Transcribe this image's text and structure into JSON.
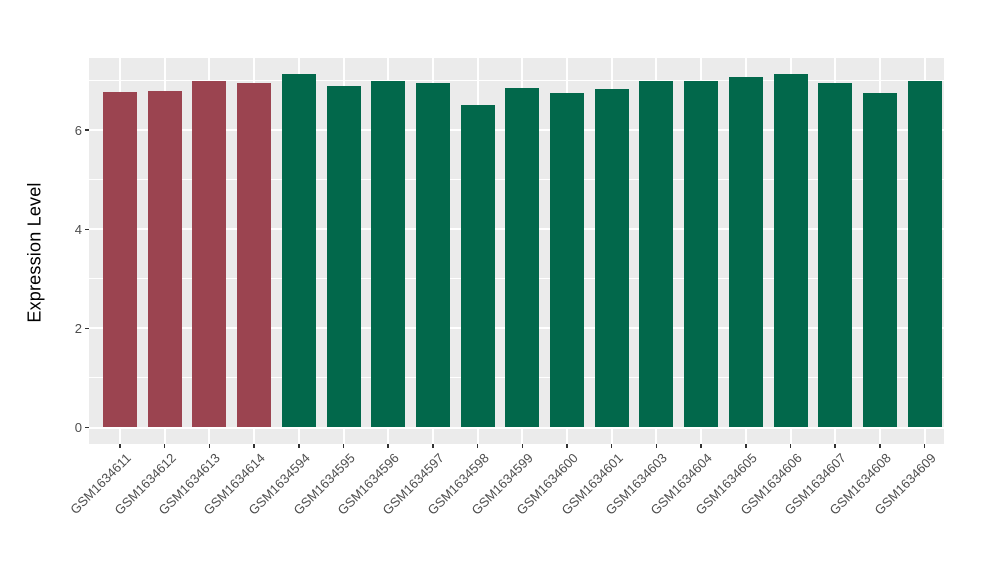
{
  "chart_data": {
    "type": "bar",
    "title": "",
    "xlabel": "",
    "ylabel": "Expression Level",
    "categories": [
      "GSM1634611",
      "GSM1634612",
      "GSM1634613",
      "GSM1634614",
      "GSM1634594",
      "GSM1634595",
      "GSM1634596",
      "GSM1634597",
      "GSM1634598",
      "GSM1634599",
      "GSM1634600",
      "GSM1634601",
      "GSM1634603",
      "GSM1634604",
      "GSM1634605",
      "GSM1634606",
      "GSM1634607",
      "GSM1634608",
      "GSM1634609"
    ],
    "values": [
      6.78,
      6.8,
      7.0,
      6.96,
      7.13,
      6.9,
      6.99,
      6.96,
      6.51,
      6.86,
      6.76,
      6.83,
      6.99,
      6.99,
      7.08,
      7.13,
      6.96,
      6.76,
      6.99
    ],
    "bar_groups": [
      "red",
      "red",
      "red",
      "red",
      "green",
      "green",
      "green",
      "green",
      "green",
      "green",
      "green",
      "green",
      "green",
      "green",
      "green",
      "green",
      "green",
      "green",
      "green"
    ],
    "group_colors": {
      "red": "#9B4450",
      "green": "#02684B"
    },
    "yticks": [
      0,
      2,
      4,
      6
    ],
    "minor_yticks": [
      1,
      3,
      5,
      7
    ],
    "ylim": [
      0,
      7.46
    ],
    "grid": "on",
    "legend_position": "none",
    "panel_bg": "#EBEBEB",
    "grid_color": "#FFFFFF"
  }
}
